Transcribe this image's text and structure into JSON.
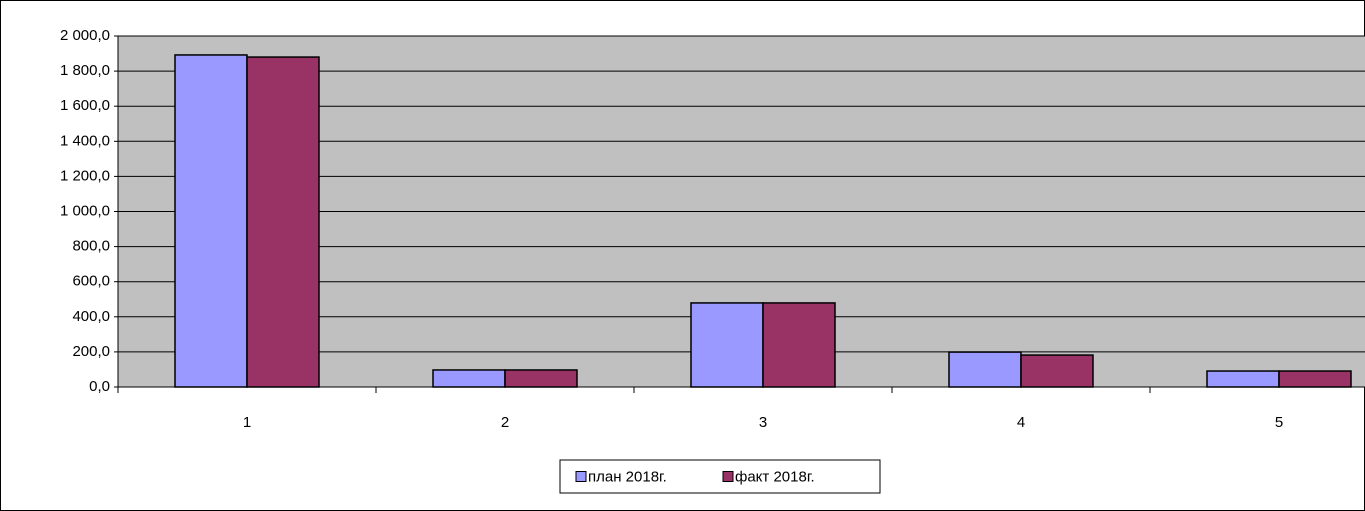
{
  "chart_data": {
    "type": "bar",
    "categories": [
      "1",
      "2",
      "3",
      "4",
      "5"
    ],
    "series": [
      {
        "name": "план 2018г.",
        "color": "#9999ff",
        "values": [
          1892,
          97,
          479,
          199,
          91
        ]
      },
      {
        "name": "факт 2018г.",
        "color": "#993366",
        "values": [
          1880,
          97,
          479,
          182,
          91
        ]
      }
    ],
    "ylim": [
      0,
      2000
    ],
    "yticks": [
      {
        "value": 0,
        "label": "0,0"
      },
      {
        "value": 200,
        "label": "200,0"
      },
      {
        "value": 400,
        "label": "400,0"
      },
      {
        "value": 600,
        "label": "600,0"
      },
      {
        "value": 800,
        "label": "800,0"
      },
      {
        "value": 1000,
        "label": "1 000,0"
      },
      {
        "value": 1200,
        "label": "1 200,0"
      },
      {
        "value": 1400,
        "label": "1 400,0"
      },
      {
        "value": 1600,
        "label": "1 600,0"
      },
      {
        "value": 1800,
        "label": "1 800,0"
      },
      {
        "value": 2000,
        "label": "2 000,0"
      }
    ],
    "grid": true,
    "plot_background": "#c0c0c0",
    "legend": "bottom"
  }
}
